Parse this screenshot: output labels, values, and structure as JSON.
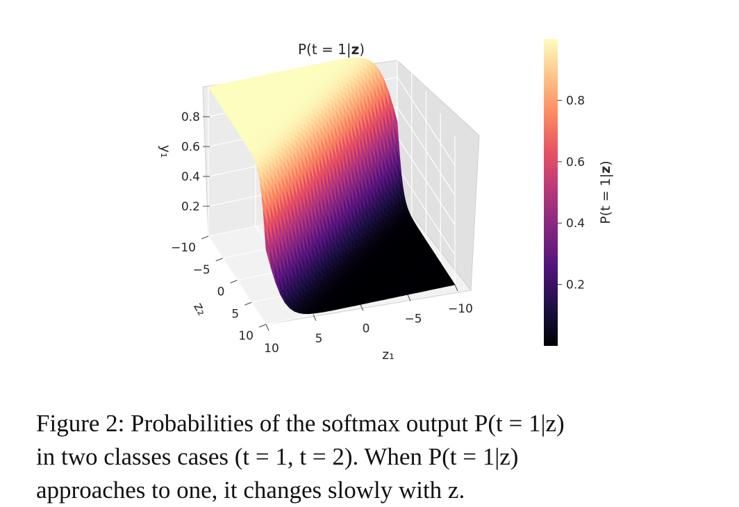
{
  "chart_data": {
    "type": "surface3d",
    "title": "P(t = 1|z)",
    "title_parts": {
      "pre": "P(t = 1|",
      "bold": "z",
      "post": ")"
    },
    "xlabel": "z₁",
    "ylabel": "z₂",
    "zlabel": "y₁",
    "function": "sigmoid(z1 - z2)",
    "x_ticks": [
      "10",
      "5",
      "0",
      "−5",
      "−10"
    ],
    "y_ticks": [
      "−10",
      "−5",
      "0",
      "5",
      "10"
    ],
    "z_ticks": [
      "0.2",
      "0.4",
      "0.6",
      "0.8"
    ],
    "xlim": [
      -10,
      10
    ],
    "ylim": [
      -10,
      10
    ],
    "zlim": [
      0,
      1
    ],
    "colormap": "magma",
    "grid": true,
    "colorbar": {
      "label": "P(t = 1|z)",
      "label_parts": {
        "pre": "P(t = 1|",
        "bold": "z",
        "post": ")"
      },
      "ticks": [
        "0.2",
        "0.4",
        "0.6",
        "0.8"
      ],
      "tick_values": [
        0.2,
        0.4,
        0.6,
        0.8
      ],
      "range": [
        0,
        1
      ]
    }
  },
  "caption": {
    "line1": "Figure 2: Probabilities of the softmax output P(t = 1|z)",
    "line2": "in two classes cases (t = 1, t = 2). When P(t = 1|z)",
    "line3": "approaches to one, it changes slowly with z."
  }
}
